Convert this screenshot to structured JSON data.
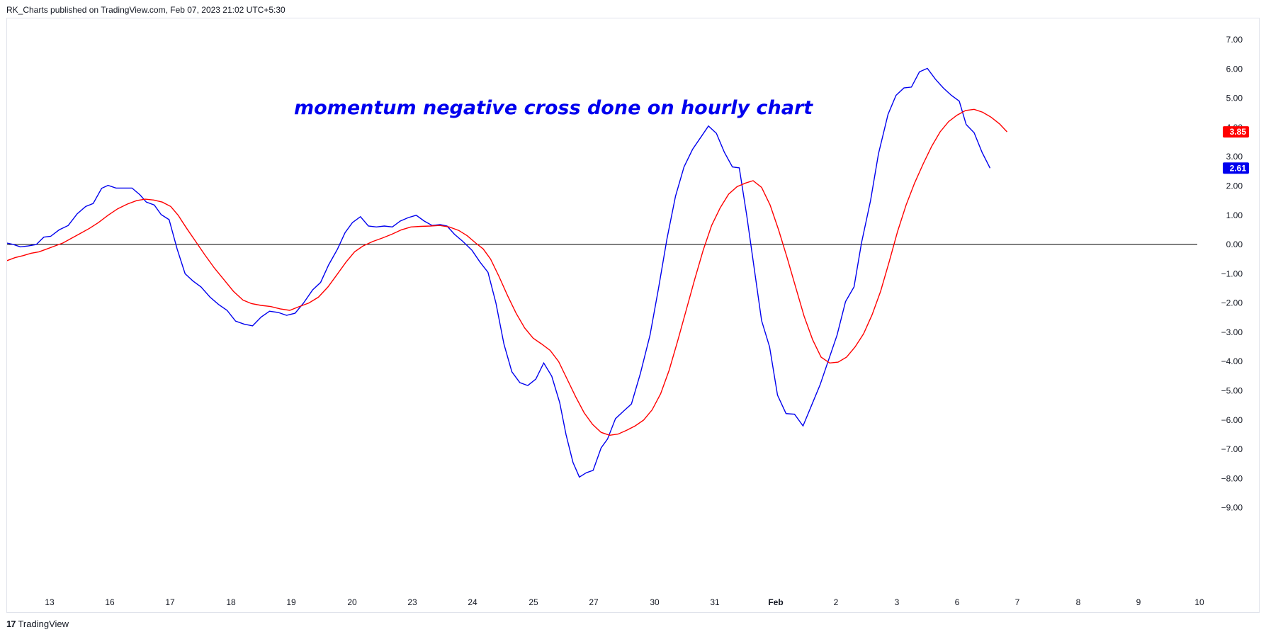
{
  "header": {
    "text": "RK_Charts published on TradingView.com, Feb 07, 2023 21:02 UTC+5:30"
  },
  "footer": {
    "brand": "TradingView",
    "logo_glyph": "17"
  },
  "chart_data": {
    "type": "line",
    "annotation": "momentum negative cross done on hourly chart",
    "ylim": [
      -9.5,
      7.5
    ],
    "y_ticks": [
      "7.00",
      "6.00",
      "5.00",
      "4.00",
      "3.00",
      "2.00",
      "1.00",
      "0.00",
      "−1.00",
      "−2.00",
      "−3.00",
      "−4.00",
      "−5.00",
      "−6.00",
      "−7.00",
      "−8.00",
      "−9.00"
    ],
    "y_tick_values": [
      7,
      6,
      5,
      4,
      3,
      2,
      1,
      0,
      -1,
      -2,
      -3,
      -4,
      -5,
      -6,
      -7,
      -8,
      -9
    ],
    "x_ticks": [
      {
        "label": "13",
        "x": 6
      },
      {
        "label": "16",
        "x": 9
      },
      {
        "label": "17",
        "x": 10
      },
      {
        "label": "18",
        "x": 11
      },
      {
        "label": "19",
        "x": 12
      },
      {
        "label": "20",
        "x": 13
      },
      {
        "label": "23",
        "x": 14
      },
      {
        "label": "24",
        "x": 15
      },
      {
        "label": "25",
        "x": 16
      },
      {
        "label": "27",
        "x": 17
      },
      {
        "label": "30",
        "x": 18
      },
      {
        "label": "31",
        "x": 19
      },
      {
        "label": "Feb",
        "x": 20,
        "bold": true
      },
      {
        "label": "2",
        "x": 21
      },
      {
        "label": "3",
        "x": 22
      },
      {
        "label": "6",
        "x": 23
      },
      {
        "label": "7",
        "x": 24
      },
      {
        "label": "8",
        "x": 25
      },
      {
        "label": "9",
        "x": 26
      },
      {
        "label": "10",
        "x": 27
      }
    ],
    "zero_line": 0,
    "series": [
      {
        "color": "#0000ee",
        "last_value": "2.61",
        "points": [
          [
            5.3,
            0.05
          ],
          [
            5.42,
            0.0
          ],
          [
            5.55,
            -0.08
          ],
          [
            5.7,
            -0.05
          ],
          [
            5.85,
            0.0
          ],
          [
            5.99,
            0.25
          ],
          [
            6.12,
            0.28
          ],
          [
            6.28,
            0.5
          ],
          [
            6.45,
            0.65
          ],
          [
            6.62,
            1.05
          ],
          [
            6.78,
            1.3
          ],
          [
            6.92,
            1.4
          ],
          [
            7.08,
            1.92
          ],
          [
            7.2,
            2.02
          ],
          [
            7.35,
            1.93
          ],
          [
            7.5,
            1.93
          ],
          [
            7.65,
            1.93
          ],
          [
            7.8,
            1.7
          ],
          [
            7.92,
            1.45
          ],
          [
            8.07,
            1.35
          ],
          [
            8.2,
            1.02
          ],
          [
            8.35,
            0.85
          ],
          [
            8.5,
            -0.15
          ],
          [
            8.65,
            -1.0
          ],
          [
            8.8,
            -1.25
          ],
          [
            8.95,
            -1.45
          ],
          [
            9.12,
            -1.8
          ],
          [
            9.28,
            -2.05
          ],
          [
            9.44,
            -2.25
          ],
          [
            9.6,
            -2.62
          ],
          [
            9.76,
            -2.72
          ],
          [
            9.92,
            -2.78
          ],
          [
            10.08,
            -2.48
          ],
          [
            10.24,
            -2.28
          ],
          [
            10.4,
            -2.32
          ],
          [
            10.56,
            -2.42
          ],
          [
            10.72,
            -2.35
          ],
          [
            10.88,
            -2.0
          ],
          [
            11.05,
            -1.55
          ],
          [
            11.2,
            -1.3
          ],
          [
            11.35,
            -0.7
          ],
          [
            11.52,
            -0.15
          ],
          [
            11.66,
            0.4
          ],
          [
            11.8,
            0.75
          ],
          [
            11.95,
            0.95
          ],
          [
            12.1,
            0.63
          ],
          [
            12.25,
            0.6
          ],
          [
            12.4,
            0.63
          ],
          [
            12.55,
            0.6
          ],
          [
            12.7,
            0.8
          ],
          [
            12.85,
            0.92
          ],
          [
            13.0,
            1.0
          ],
          [
            13.15,
            0.8
          ],
          [
            13.3,
            0.65
          ],
          [
            13.45,
            0.68
          ],
          [
            13.58,
            0.63
          ],
          [
            13.72,
            0.35
          ],
          [
            13.88,
            0.1
          ],
          [
            14.05,
            -0.2
          ],
          [
            14.2,
            -0.6
          ],
          [
            14.35,
            -0.95
          ],
          [
            14.5,
            -2.0
          ],
          [
            14.65,
            -3.4
          ],
          [
            14.8,
            -4.35
          ],
          [
            14.95,
            -4.72
          ],
          [
            15.1,
            -4.82
          ],
          [
            15.25,
            -4.6
          ],
          [
            15.4,
            -4.05
          ],
          [
            15.55,
            -4.5
          ],
          [
            15.7,
            -5.4
          ],
          [
            15.82,
            -6.5
          ],
          [
            15.95,
            -7.45
          ],
          [
            16.07,
            -7.95
          ],
          [
            16.2,
            -7.8
          ],
          [
            16.33,
            -7.72
          ],
          [
            16.48,
            -6.95
          ],
          [
            16.6,
            -6.65
          ],
          [
            16.75,
            -5.95
          ],
          [
            16.9,
            -5.7
          ],
          [
            17.05,
            -5.45
          ],
          [
            17.22,
            -4.4
          ],
          [
            17.4,
            -3.1
          ],
          [
            17.56,
            -1.5
          ],
          [
            17.72,
            0.2
          ],
          [
            17.88,
            1.65
          ],
          [
            18.04,
            2.65
          ],
          [
            18.2,
            3.25
          ],
          [
            18.35,
            3.65
          ],
          [
            18.5,
            4.05
          ],
          [
            18.65,
            3.8
          ],
          [
            18.8,
            3.15
          ],
          [
            18.95,
            2.65
          ],
          [
            19.08,
            2.62
          ],
          [
            19.22,
            1.0
          ],
          [
            19.36,
            -0.8
          ],
          [
            19.5,
            -2.6
          ],
          [
            19.65,
            -3.5
          ],
          [
            19.8,
            -5.15
          ],
          [
            19.96,
            -5.78
          ],
          [
            20.12,
            -5.8
          ],
          [
            20.28,
            -6.2
          ],
          [
            20.44,
            -5.5
          ],
          [
            20.6,
            -4.8
          ],
          [
            20.76,
            -3.95
          ],
          [
            20.92,
            -3.1
          ],
          [
            21.08,
            -1.95
          ],
          [
            21.24,
            -1.45
          ],
          [
            21.38,
            0.05
          ],
          [
            21.55,
            1.5
          ],
          [
            21.7,
            3.1
          ],
          [
            21.88,
            4.45
          ],
          [
            22.03,
            5.1
          ],
          [
            22.18,
            5.35
          ],
          [
            22.32,
            5.38
          ],
          [
            22.47,
            5.9
          ],
          [
            22.62,
            6.02
          ],
          [
            22.77,
            5.65
          ],
          [
            22.92,
            5.35
          ],
          [
            23.07,
            5.1
          ],
          [
            23.22,
            4.9
          ],
          [
            23.35,
            4.1
          ],
          [
            23.5,
            3.82
          ],
          [
            23.65,
            3.15
          ],
          [
            23.8,
            2.61
          ]
        ]
      },
      {
        "color": "#ff0000",
        "last_value": "3.85",
        "points": [
          [
            5.3,
            -0.55
          ],
          [
            5.45,
            -0.45
          ],
          [
            5.6,
            -0.38
          ],
          [
            5.75,
            -0.3
          ],
          [
            5.9,
            -0.25
          ],
          [
            6.05,
            -0.15
          ],
          [
            6.2,
            -0.05
          ],
          [
            6.35,
            0.05
          ],
          [
            6.5,
            0.2
          ],
          [
            6.68,
            0.38
          ],
          [
            6.85,
            0.55
          ],
          [
            7.02,
            0.75
          ],
          [
            7.2,
            1.0
          ],
          [
            7.38,
            1.22
          ],
          [
            7.56,
            1.38
          ],
          [
            7.74,
            1.5
          ],
          [
            7.9,
            1.55
          ],
          [
            8.06,
            1.52
          ],
          [
            8.22,
            1.45
          ],
          [
            8.38,
            1.3
          ],
          [
            8.52,
            1.0
          ],
          [
            8.68,
            0.55
          ],
          [
            8.85,
            0.1
          ],
          [
            9.02,
            -0.35
          ],
          [
            9.2,
            -0.8
          ],
          [
            9.38,
            -1.2
          ],
          [
            9.56,
            -1.6
          ],
          [
            9.74,
            -1.9
          ],
          [
            9.9,
            -2.02
          ],
          [
            10.08,
            -2.08
          ],
          [
            10.26,
            -2.12
          ],
          [
            10.44,
            -2.2
          ],
          [
            10.62,
            -2.25
          ],
          [
            10.8,
            -2.12
          ],
          [
            10.98,
            -2.0
          ],
          [
            11.16,
            -1.8
          ],
          [
            11.34,
            -1.45
          ],
          [
            11.52,
            -1.0
          ],
          [
            11.68,
            -0.6
          ],
          [
            11.84,
            -0.25
          ],
          [
            12.0,
            -0.05
          ],
          [
            12.18,
            0.1
          ],
          [
            12.36,
            0.22
          ],
          [
            12.54,
            0.35
          ],
          [
            12.72,
            0.5
          ],
          [
            12.9,
            0.6
          ],
          [
            13.08,
            0.62
          ],
          [
            13.26,
            0.63
          ],
          [
            13.44,
            0.65
          ],
          [
            13.62,
            0.6
          ],
          [
            13.8,
            0.48
          ],
          [
            13.96,
            0.3
          ],
          [
            14.12,
            0.05
          ],
          [
            14.26,
            -0.15
          ],
          [
            14.4,
            -0.5
          ],
          [
            14.56,
            -1.1
          ],
          [
            14.72,
            -1.75
          ],
          [
            14.88,
            -2.35
          ],
          [
            15.04,
            -2.85
          ],
          [
            15.2,
            -3.2
          ],
          [
            15.36,
            -3.4
          ],
          [
            15.52,
            -3.62
          ],
          [
            15.68,
            -4.0
          ],
          [
            15.84,
            -4.6
          ],
          [
            16.0,
            -5.2
          ],
          [
            16.16,
            -5.75
          ],
          [
            16.32,
            -6.15
          ],
          [
            16.48,
            -6.42
          ],
          [
            16.64,
            -6.52
          ],
          [
            16.8,
            -6.48
          ],
          [
            16.96,
            -6.35
          ],
          [
            17.12,
            -6.2
          ],
          [
            17.28,
            -6.0
          ],
          [
            17.44,
            -5.65
          ],
          [
            17.6,
            -5.1
          ],
          [
            17.76,
            -4.3
          ],
          [
            17.92,
            -3.3
          ],
          [
            18.08,
            -2.25
          ],
          [
            18.24,
            -1.2
          ],
          [
            18.4,
            -0.2
          ],
          [
            18.56,
            0.65
          ],
          [
            18.72,
            1.25
          ],
          [
            18.88,
            1.72
          ],
          [
            19.04,
            1.98
          ],
          [
            19.2,
            2.1
          ],
          [
            19.34,
            2.18
          ],
          [
            19.5,
            1.95
          ],
          [
            19.66,
            1.35
          ],
          [
            19.82,
            0.5
          ],
          [
            19.98,
            -0.45
          ],
          [
            20.14,
            -1.45
          ],
          [
            20.3,
            -2.45
          ],
          [
            20.46,
            -3.25
          ],
          [
            20.62,
            -3.85
          ],
          [
            20.78,
            -4.05
          ],
          [
            20.94,
            -4.02
          ],
          [
            21.1,
            -3.85
          ],
          [
            21.26,
            -3.5
          ],
          [
            21.42,
            -3.05
          ],
          [
            21.58,
            -2.4
          ],
          [
            21.74,
            -1.6
          ],
          [
            21.9,
            -0.6
          ],
          [
            22.06,
            0.45
          ],
          [
            22.22,
            1.35
          ],
          [
            22.38,
            2.1
          ],
          [
            22.54,
            2.75
          ],
          [
            22.7,
            3.35
          ],
          [
            22.86,
            3.85
          ],
          [
            23.02,
            4.2
          ],
          [
            23.18,
            4.42
          ],
          [
            23.34,
            4.58
          ],
          [
            23.5,
            4.62
          ],
          [
            23.66,
            4.52
          ],
          [
            23.82,
            4.35
          ],
          [
            23.98,
            4.12
          ],
          [
            24.12,
            3.85
          ]
        ]
      }
    ]
  },
  "colors": {
    "axis_text": "#131722",
    "zero_line": "#000000",
    "border": "#e0e3eb"
  }
}
